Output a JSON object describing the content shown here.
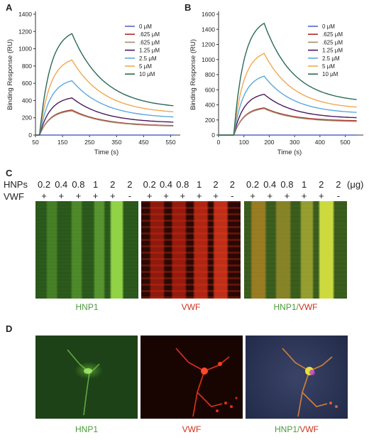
{
  "panels": {
    "A": "A",
    "B": "B",
    "C": "C",
    "D": "D"
  },
  "colors": {
    "c0": "#5566cc",
    "c1": "#b02a2a",
    "c2": "#a09070",
    "c3": "#4a1a5e",
    "c4": "#5aa8e0",
    "c5": "#f0a850",
    "c6": "#2a6a58",
    "green_text": "#4c9a3c",
    "red_text": "#d0301a"
  },
  "chart_data": [
    {
      "type": "line",
      "panel": "A",
      "xlabel": "Time (s)",
      "ylabel": "Binding Response (RU)",
      "xlim": [
        50,
        575
      ],
      "ylim": [
        0,
        1400
      ],
      "xticks": [
        50,
        150,
        250,
        350,
        450,
        550
      ],
      "yticks": [
        0,
        200,
        400,
        600,
        800,
        1000,
        1200,
        1400
      ],
      "inject_start": 65,
      "inject_end": 185,
      "series": [
        {
          "name": "0 μM",
          "color": "#5566cc",
          "peak": 0,
          "end": 0
        },
        {
          "name": ".625 μM",
          "color": "#b02a2a",
          "peak": 290,
          "end": 110
        },
        {
          "name": ".625 μM",
          "color": "#a09070",
          "peak": 280,
          "end": 105
        },
        {
          "name": "1.25 μM",
          "color": "#4a1a5e",
          "peak": 430,
          "end": 150
        },
        {
          "name": "2.5 μM",
          "color": "#5aa8e0",
          "peak": 630,
          "end": 210
        },
        {
          "name": "5 μM",
          "color": "#f0a850",
          "peak": 870,
          "end": 270
        },
        {
          "name": "10 μM",
          "color": "#2a6a58",
          "peak": 1175,
          "end": 340
        }
      ]
    },
    {
      "type": "line",
      "panel": "B",
      "xlabel": "Time (s)",
      "ylabel": "Binding Response (RU)",
      "xlim": [
        0,
        560
      ],
      "ylim": [
        0,
        1600
      ],
      "xticks": [
        0,
        100,
        200,
        300,
        400,
        500
      ],
      "yticks": [
        0,
        200,
        400,
        600,
        800,
        1000,
        1200,
        1400,
        1600
      ],
      "inject_start": 60,
      "inject_end": 180,
      "series": [
        {
          "name": "0 μM",
          "color": "#5566cc",
          "peak": 0,
          "end": 0
        },
        {
          "name": ".625 μM",
          "color": "#b02a2a",
          "peak": 360,
          "end": 190
        },
        {
          "name": ".625 μM",
          "color": "#a09070",
          "peak": 350,
          "end": 180
        },
        {
          "name": "1.25 μM",
          "color": "#4a1a5e",
          "peak": 540,
          "end": 230
        },
        {
          "name": "2.5 μM",
          "color": "#5aa8e0",
          "peak": 780,
          "end": 300
        },
        {
          "name": "5 μM",
          "color": "#f0a850",
          "peak": 1080,
          "end": 370
        },
        {
          "name": "10 μM",
          "color": "#2a6a58",
          "peak": 1480,
          "end": 470
        }
      ]
    }
  ],
  "gel": {
    "row1_label": "HNPs",
    "row2_label": "VWF",
    "unit": "(μg)",
    "groups": [
      {
        "amounts": [
          "0.2",
          "0.4",
          "0.8",
          "1",
          "2",
          "2"
        ],
        "vwf": [
          "+",
          "+",
          "+",
          "+",
          "+",
          "-"
        ]
      },
      {
        "amounts": [
          "0.2",
          "0.4",
          "0.8",
          "1",
          "2",
          "2"
        ],
        "vwf": [
          "+",
          "+",
          "+",
          "+",
          "+",
          "-"
        ]
      },
      {
        "amounts": [
          "0.2",
          "0.4",
          "0.8",
          "1",
          "2",
          "2"
        ],
        "vwf": [
          "+",
          "+",
          "+",
          "+",
          "+",
          "-"
        ]
      }
    ],
    "labels": {
      "hnp1": "HNP1",
      "vwf": "VWF",
      "merge_a": "HNP1",
      "merge_sep": "/",
      "merge_b": "VWF"
    }
  },
  "micro": {
    "labels": {
      "hnp1": "HNP1",
      "vwf": "VWF",
      "merge_a": "HNP1",
      "merge_sep": "/",
      "merge_b": "VWF"
    }
  }
}
